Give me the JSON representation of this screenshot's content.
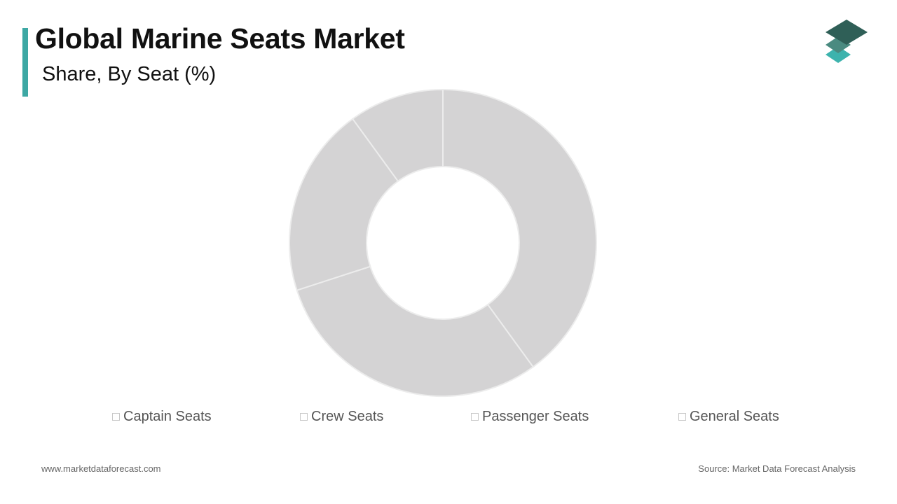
{
  "header": {
    "title": "Global Marine Seats Market",
    "subtitle": "Share, By Seat (%)"
  },
  "colors": {
    "accent": "#3da8a4",
    "slice_fill": "#d4d3d4",
    "slice_border": "#ececec",
    "logo_top": "#2f5f57",
    "logo_mid": "#4a8a80",
    "logo_bottom": "#3db3ad"
  },
  "chart_data": {
    "type": "pie",
    "donut": true,
    "title": "Share, By Seat (%)",
    "categories": [
      "Captain Seats",
      "Crew Seats",
      "Passenger Seats",
      "General Seats"
    ],
    "values": [
      40,
      30,
      20,
      10
    ],
    "legend": "bottom"
  },
  "legend": {
    "items": [
      {
        "label": "Captain Seats"
      },
      {
        "label": "Crew Seats"
      },
      {
        "label": "Passenger Seats"
      },
      {
        "label": "General Seats"
      }
    ]
  },
  "footer": {
    "website": "www.marketdataforecast.com",
    "source": "Source: Market Data Forecast Analysis"
  },
  "icons": {
    "logo": "stacked-layers-icon"
  }
}
